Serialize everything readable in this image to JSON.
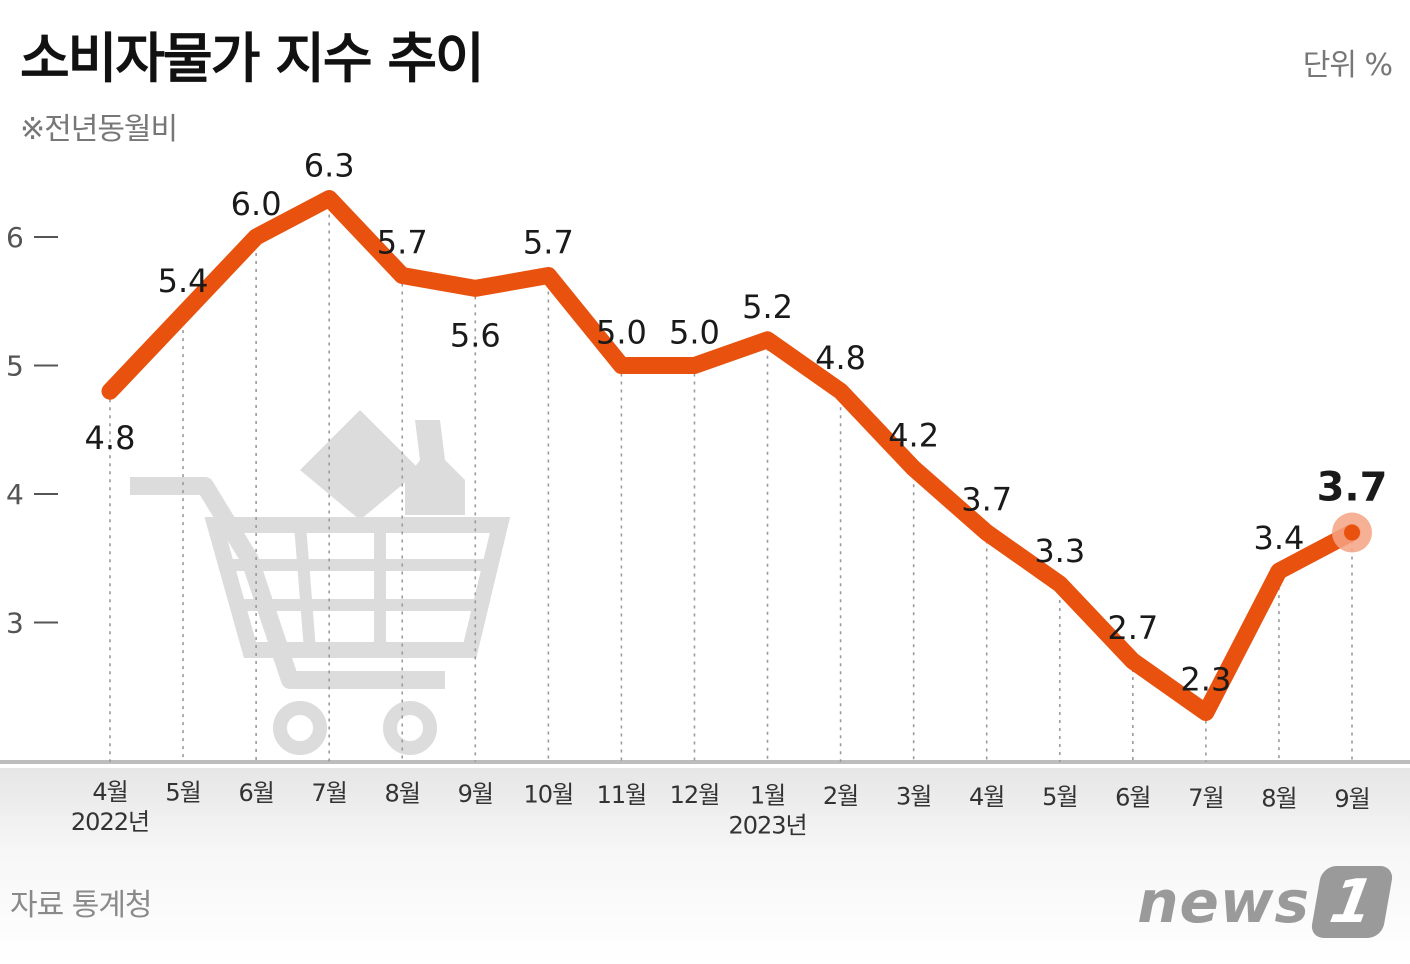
{
  "header": {
    "title": "소비자물가 지수 추이",
    "subtitle": "※전년동월비",
    "unit": "단위 %"
  },
  "footer": {
    "source": "자료 통계청",
    "logo_text": "news",
    "logo_badge": "1"
  },
  "colors": {
    "line": "#e8520e",
    "highlight": "#f4a283",
    "guide": "#9a9a9a",
    "cart": "#dcdcdc"
  },
  "chart_data": {
    "type": "line",
    "title": "소비자물가 지수 추이",
    "subtitle": "※전년동월비",
    "unit": "단위 %",
    "categories": [
      "4월",
      "5월",
      "6월",
      "7월",
      "8월",
      "9월",
      "10월",
      "11월",
      "12월",
      "1월",
      "2월",
      "3월",
      "4월",
      "5월",
      "6월",
      "7월",
      "8월",
      "9월"
    ],
    "year_labels": [
      {
        "index": 0,
        "label": "2022년"
      },
      {
        "index": 9,
        "label": "2023년"
      }
    ],
    "values": [
      4.8,
      5.4,
      6.0,
      6.3,
      5.7,
      5.6,
      5.7,
      5.0,
      5.0,
      5.2,
      4.8,
      4.2,
      3.7,
      3.3,
      2.7,
      2.3,
      3.4,
      3.7
    ],
    "data_labels": [
      "4.8",
      "5.4",
      "6.0",
      "6.3",
      "5.7",
      "5.6",
      "5.7",
      "5.0",
      "5.0",
      "5.2",
      "4.8",
      "4.2",
      "3.7",
      "3.3",
      "2.7",
      "2.3",
      "3.4",
      "3.7"
    ],
    "label_below": [
      true,
      false,
      false,
      false,
      false,
      true,
      false,
      false,
      false,
      false,
      false,
      false,
      false,
      false,
      false,
      false,
      false,
      false
    ],
    "highlight_index": 17,
    "yticks": [
      3,
      4,
      5,
      6
    ],
    "ylim": [
      1.9,
      6.7
    ],
    "grid": false,
    "legend": "none"
  }
}
